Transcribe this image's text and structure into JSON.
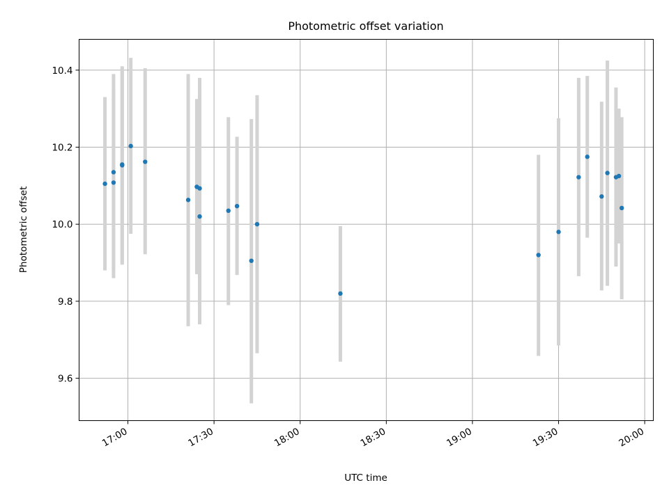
{
  "chart_data": {
    "type": "scatter",
    "title": "Photometric offset variation",
    "xlabel": "UTC time",
    "ylabel": "Photometric offset",
    "xlim": [
      "16:43",
      "20:03"
    ],
    "ylim": [
      9.49,
      10.48
    ],
    "grid": true,
    "x_ticks": [
      "17:00",
      "17:30",
      "18:00",
      "18:30",
      "19:00",
      "19:30",
      "20:00"
    ],
    "y_ticks": [
      9.6,
      9.8,
      10.0,
      10.2,
      10.4
    ],
    "y_tick_labels": [
      "9.6",
      "9.8",
      "10.0",
      "10.2",
      "10.4"
    ],
    "colors": {
      "point": "#1f77b4",
      "errorbar": "#d3d3d3"
    },
    "points": [
      {
        "x": "16:52",
        "y": 10.105,
        "ylo": 9.88,
        "yhi": 10.33
      },
      {
        "x": "16:55",
        "y": 10.108,
        "ylo": 9.86,
        "yhi": 10.355
      },
      {
        "x": "16:55",
        "y": 10.135,
        "ylo": 9.88,
        "yhi": 10.39
      },
      {
        "x": "16:58",
        "y": 10.153,
        "ylo": 9.895,
        "yhi": 10.41
      },
      {
        "x": "16:58",
        "y": 10.155,
        "ylo": 9.9,
        "yhi": 10.405
      },
      {
        "x": "17:01",
        "y": 10.203,
        "ylo": 9.975,
        "yhi": 10.432
      },
      {
        "x": "17:06",
        "y": 10.162,
        "ylo": 9.922,
        "yhi": 10.405
      },
      {
        "x": "17:21",
        "y": 10.063,
        "ylo": 9.735,
        "yhi": 10.39
      },
      {
        "x": "17:24",
        "y": 10.097,
        "ylo": 9.87,
        "yhi": 10.325
      },
      {
        "x": "17:25",
        "y": 10.02,
        "ylo": 9.74,
        "yhi": 10.35
      },
      {
        "x": "17:25",
        "y": 10.093,
        "ylo": 9.805,
        "yhi": 10.38
      },
      {
        "x": "17:35",
        "y": 10.035,
        "ylo": 9.79,
        "yhi": 10.278
      },
      {
        "x": "17:38",
        "y": 10.047,
        "ylo": 9.868,
        "yhi": 10.227
      },
      {
        "x": "17:43",
        "y": 9.905,
        "ylo": 9.535,
        "yhi": 10.273
      },
      {
        "x": "17:45",
        "y": 10.0,
        "ylo": 9.665,
        "yhi": 10.335
      },
      {
        "x": "18:14",
        "y": 9.82,
        "ylo": 9.643,
        "yhi": 9.995
      },
      {
        "x": "19:23",
        "y": 9.92,
        "ylo": 9.658,
        "yhi": 10.18
      },
      {
        "x": "19:30",
        "y": 9.98,
        "ylo": 9.685,
        "yhi": 10.275
      },
      {
        "x": "19:37",
        "y": 10.122,
        "ylo": 9.865,
        "yhi": 10.38
      },
      {
        "x": "19:40",
        "y": 10.175,
        "ylo": 9.965,
        "yhi": 10.385
      },
      {
        "x": "19:45",
        "y": 10.072,
        "ylo": 9.828,
        "yhi": 10.318
      },
      {
        "x": "19:47",
        "y": 10.133,
        "ylo": 9.84,
        "yhi": 10.425
      },
      {
        "x": "19:50",
        "y": 10.122,
        "ylo": 9.89,
        "yhi": 10.355
      },
      {
        "x": "19:51",
        "y": 10.125,
        "ylo": 9.95,
        "yhi": 10.3
      },
      {
        "x": "19:52",
        "y": 10.042,
        "ylo": 9.805,
        "yhi": 10.278
      }
    ]
  }
}
